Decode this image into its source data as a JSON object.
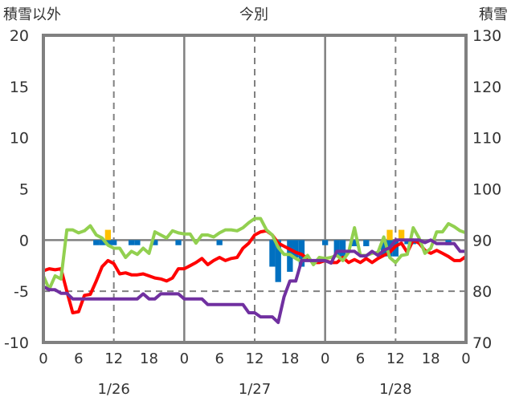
{
  "chart_data": {
    "type": "line",
    "title": "今別",
    "left_axis_label": "積雪以外",
    "right_axis_label": "積雪",
    "left_ylim": [
      -10,
      20
    ],
    "left_ticks": [
      "20",
      "15",
      "10",
      "5",
      "0",
      "-5",
      "-10"
    ],
    "left_tick_values": [
      20,
      15,
      10,
      5,
      0,
      -5,
      -10
    ],
    "right_ylim": [
      70,
      130
    ],
    "right_ticks": [
      "130",
      "120",
      "110",
      "100",
      "90",
      "80",
      "70"
    ],
    "right_tick_values": [
      130,
      120,
      110,
      100,
      90,
      80,
      70
    ],
    "xlim_hours": [
      0,
      72
    ],
    "x_tick_labels": [
      "0",
      "6",
      "12",
      "18",
      "0",
      "6",
      "12",
      "18",
      "0",
      "6",
      "12",
      "18",
      "0"
    ],
    "date_labels": [
      "1/26",
      "1/27",
      "1/28"
    ],
    "grid": "solid at day boundaries and 0; dashed at noon and -5",
    "colors": {
      "red": "#ff0000",
      "green": "#92d050",
      "purple": "#7030a0",
      "blue_bar": "#0070c0",
      "orange_bar": "#ffc000",
      "grid": "#808080"
    },
    "series": [
      {
        "name": "red",
        "axis": "left",
        "color": "#ff0000",
        "values": [
          -3,
          -2.8,
          -2.9,
          -2.8,
          -5,
          -7.1,
          -7,
          -5.4,
          -5.3,
          -4,
          -2.6,
          -2,
          -2.3,
          -3.3,
          -3.2,
          -3.4,
          -3.4,
          -3.3,
          -3.5,
          -3.7,
          -3.8,
          -4,
          -3.7,
          -2.8,
          -2.8,
          -2.5,
          -2.2,
          -1.8,
          -2.4,
          -2,
          -1.7,
          -2,
          -1.8,
          -1.7,
          -0.8,
          -0.3,
          0.5,
          0.8,
          0.9,
          0.5,
          -0.3,
          -0.6,
          -0.9,
          -1.2,
          -1.4,
          -1.8,
          -2.2,
          -2.2,
          -2,
          -2.2,
          -2.2,
          -1.7,
          -2.2,
          -1.9,
          -2.2,
          -1.8,
          -2.2,
          -1.8,
          -1.5,
          -1.2,
          -0.6,
          -0.3,
          -1.2,
          0,
          -0.3,
          -1,
          -1.3,
          -1,
          -1.3,
          -1.6,
          -2,
          -2,
          -1.6
        ]
      },
      {
        "name": "green",
        "axis": "left",
        "color": "#92d050",
        "values": [
          -3.5,
          -4.8,
          -3.5,
          -3.8,
          1,
          1,
          0.7,
          0.9,
          1.4,
          0.5,
          0.2,
          -0.5,
          -0.8,
          -0.8,
          -1.7,
          -1.1,
          -1.4,
          -0.8,
          -1.3,
          0.8,
          0.5,
          0.2,
          0.9,
          0.7,
          0.6,
          0.6,
          -0.3,
          0.5,
          0.5,
          0.3,
          0.7,
          1,
          1,
          0.9,
          1.2,
          1.7,
          2.1,
          2.1,
          1,
          0.5,
          -0.7,
          -1.4,
          -1.4,
          -1.8,
          -2.1,
          -1.5,
          -2.4,
          -1.7,
          -1.8,
          -1.7,
          -1.5,
          -2,
          -1.2,
          1.2,
          -1.5,
          -1.5,
          -1.3,
          -1.2,
          0.3,
          -1.7,
          -2.2,
          -1.5,
          -1.4,
          1.2,
          0.2,
          -1.3,
          -0.8,
          0.8,
          0.8,
          1.6,
          1.3,
          0.9,
          0.7
        ]
      },
      {
        "name": "purple",
        "axis": "right",
        "color": "#7030a0",
        "values": [
          80.9,
          80.3,
          80.3,
          79.6,
          79.6,
          78.5,
          78.5,
          78.5,
          78.5,
          78.5,
          78.5,
          78.5,
          78.5,
          78.5,
          78.5,
          78.5,
          78.5,
          79.5,
          78.5,
          78.5,
          79.5,
          79.5,
          79.5,
          79.5,
          78.5,
          78.5,
          78.5,
          78.5,
          77.4,
          77.4,
          77.4,
          77.4,
          77.4,
          77.4,
          77.4,
          75.8,
          75.8,
          75,
          75,
          75,
          73.9,
          78.9,
          82,
          82,
          86,
          86,
          86,
          86,
          86,
          85.5,
          87.8,
          87.8,
          87.8,
          87.8,
          86.9,
          86.9,
          87.8,
          87,
          88,
          88.5,
          90,
          90,
          90,
          90,
          90,
          89.5,
          90,
          89.3,
          89.3,
          89.3,
          89.3,
          87.8,
          87.8
        ]
      }
    ],
    "bars": [
      {
        "hour": 9,
        "value": -0.5,
        "color": "#0070c0"
      },
      {
        "hour": 10,
        "value": -0.5,
        "color": "#0070c0"
      },
      {
        "hour": 11,
        "value": -0.5,
        "color": "#0070c0"
      },
      {
        "hour": 12,
        "value": -0.5,
        "color": "#0070c0"
      },
      {
        "hour": 11,
        "value": 1,
        "color": "#ffc000"
      },
      {
        "hour": 15,
        "value": -0.5,
        "color": "#0070c0"
      },
      {
        "hour": 16,
        "value": -0.5,
        "color": "#0070c0"
      },
      {
        "hour": 19,
        "value": -0.5,
        "color": "#0070c0"
      },
      {
        "hour": 23,
        "value": -0.5,
        "color": "#0070c0"
      },
      {
        "hour": 30,
        "value": -0.5,
        "color": "#0070c0"
      },
      {
        "hour": 39,
        "value": -2.6,
        "color": "#0070c0"
      },
      {
        "hour": 40,
        "value": -4.1,
        "color": "#0070c0"
      },
      {
        "hour": 42,
        "value": -3.1,
        "color": "#0070c0"
      },
      {
        "hour": 43,
        "value": -1.7,
        "color": "#0070c0"
      },
      {
        "hour": 44,
        "value": -2.6,
        "color": "#0070c0"
      },
      {
        "hour": 48,
        "value": -0.5,
        "color": "#0070c0"
      },
      {
        "hour": 50,
        "value": -1.6,
        "color": "#0070c0"
      },
      {
        "hour": 51,
        "value": -1.6,
        "color": "#0070c0"
      },
      {
        "hour": 53,
        "value": -0.6,
        "color": "#0070c0"
      },
      {
        "hour": 55,
        "value": -0.6,
        "color": "#0070c0"
      },
      {
        "hour": 58,
        "value": -1.6,
        "color": "#0070c0"
      },
      {
        "hour": 59,
        "value": -1.6,
        "color": "#0070c0"
      },
      {
        "hour": 60,
        "value": -1.6,
        "color": "#0070c0"
      },
      {
        "hour": 59,
        "value": 1,
        "color": "#ffc000"
      },
      {
        "hour": 61,
        "value": 1,
        "color": "#ffc000"
      },
      {
        "hour": 62,
        "value": -0.4,
        "color": "#0070c0"
      },
      {
        "hour": 63,
        "value": -0.4,
        "color": "#0070c0"
      },
      {
        "hour": 69,
        "value": -0.5,
        "color": "#0070c0"
      }
    ]
  }
}
